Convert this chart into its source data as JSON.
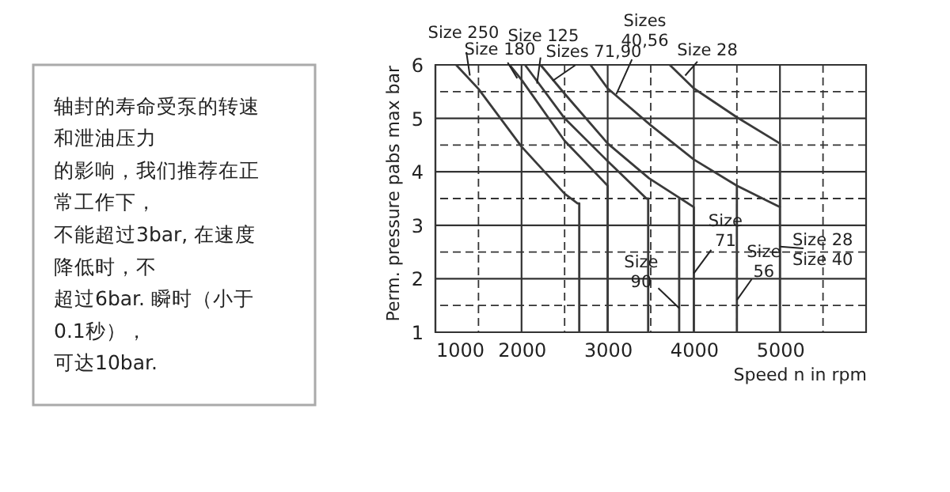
{
  "chart_data": [
    {
      "type": "other",
      "annotations": [
        "轴封的寿命受泵的转速",
        "和泄油压力",
        "的影响，我们推荐在正",
        "常工作下，",
        "不能超过3bar, 在速度",
        "降低时，不",
        "超过6bar. 瞬时（小于",
        "0.1秒），",
        "可达10bar."
      ]
    },
    {
      "type": "line",
      "xlabel": "Speed n in rpm",
      "ylabel": "Perm. pressure pabs max bar",
      "xlim": [
        1000,
        6000
      ],
      "ylim": [
        1,
        6
      ],
      "xticks": [
        1000,
        {
          "value": 1500,
          "label": null
        },
        2000,
        {
          "value": 2500,
          "label": null
        },
        3000,
        {
          "value": 3500,
          "label": null
        },
        4000,
        {
          "value": 4500,
          "label": null
        },
        5000,
        {
          "value": 5500,
          "label": null
        },
        {
          "value": 6000,
          "label": null
        }
      ],
      "yticks": [
        1,
        {
          "value": 1.5,
          "label": null
        },
        2,
        {
          "value": 2.5,
          "label": null
        },
        3,
        {
          "value": 3.5,
          "label": null
        },
        4,
        {
          "value": 4.5,
          "label": null
        },
        5,
        {
          "value": 5.5,
          "label": null
        },
        6
      ],
      "grid": true,
      "legend": false,
      "marker": "none",
      "line_style": "solid",
      "series": [
        {
          "color": "#3a3a3a",
          "x": [
            1240,
            1500,
            2000,
            2500,
            2650,
            2670,
            2670
          ],
          "values": [
            6,
            5.55,
            4.47,
            3.59,
            3.41,
            3.41,
            1
          ]
        },
        {
          "color": "#3a3a3a",
          "x": [
            1860,
            2000,
            2500,
            3000,
            3000
          ],
          "values": [
            6,
            5.72,
            4.58,
            3.74,
            1
          ]
        },
        {
          "color": "#3a3a3a",
          "x": [
            2040,
            2500,
            3000,
            3450,
            3470,
            3470
          ],
          "values": [
            6,
            5.0,
            4.2,
            3.5,
            3.5,
            1
          ]
        },
        {
          "color": "#3a3a3a",
          "x": [
            2220,
            2500,
            3000,
            3480,
            4000,
            4000
          ],
          "values": [
            6,
            5.46,
            4.53,
            3.88,
            3.34,
            1
          ]
        },
        {
          "color": "#3a3a3a",
          "x": [
            3830,
            3830
          ],
          "values": [
            3.5,
            1
          ]
        },
        {
          "color": "#3a3a3a",
          "x": [
            2800,
            3000,
            3500,
            4000,
            4500,
            5000,
            5000
          ],
          "values": [
            6,
            5.56,
            4.87,
            4.23,
            3.74,
            3.34,
            1
          ]
        },
        {
          "color": "#3a3a3a",
          "x": [
            4500,
            4500
          ],
          "values": [
            3.74,
            1
          ]
        },
        {
          "color": "#3a3a3a",
          "x": [
            3720,
            4000,
            4500,
            5000,
            5000
          ],
          "values": [
            6,
            5.56,
            5.02,
            4.53,
            3.34
          ]
        }
      ],
      "annotations": [
        {
          "text": "Size 250",
          "x": 1400,
          "y": 5.8
        },
        {
          "text": "Size 180",
          "x": 1950,
          "y": 5.75
        },
        {
          "text": "Size 125",
          "x": 2180,
          "y": 5.65
        },
        {
          "text": "Sizes 71,90",
          "x": 2360,
          "y": 5.7
        },
        {
          "text": "Sizes\n40,56",
          "x": 3100,
          "y": 5.45
        },
        {
          "text": "Size 28",
          "x": 3900,
          "y": 5.8
        },
        {
          "text": "Size\n71",
          "x": 4000,
          "y": 2.1
        },
        {
          "text": "Size\n90",
          "x": 3830,
          "y": 1.45
        },
        {
          "text": "Size\n56",
          "x": 4500,
          "y": 1.6
        },
        {
          "text": "Size 28\nSize 40",
          "x": 5000,
          "y": 2.6
        }
      ]
    }
  ]
}
